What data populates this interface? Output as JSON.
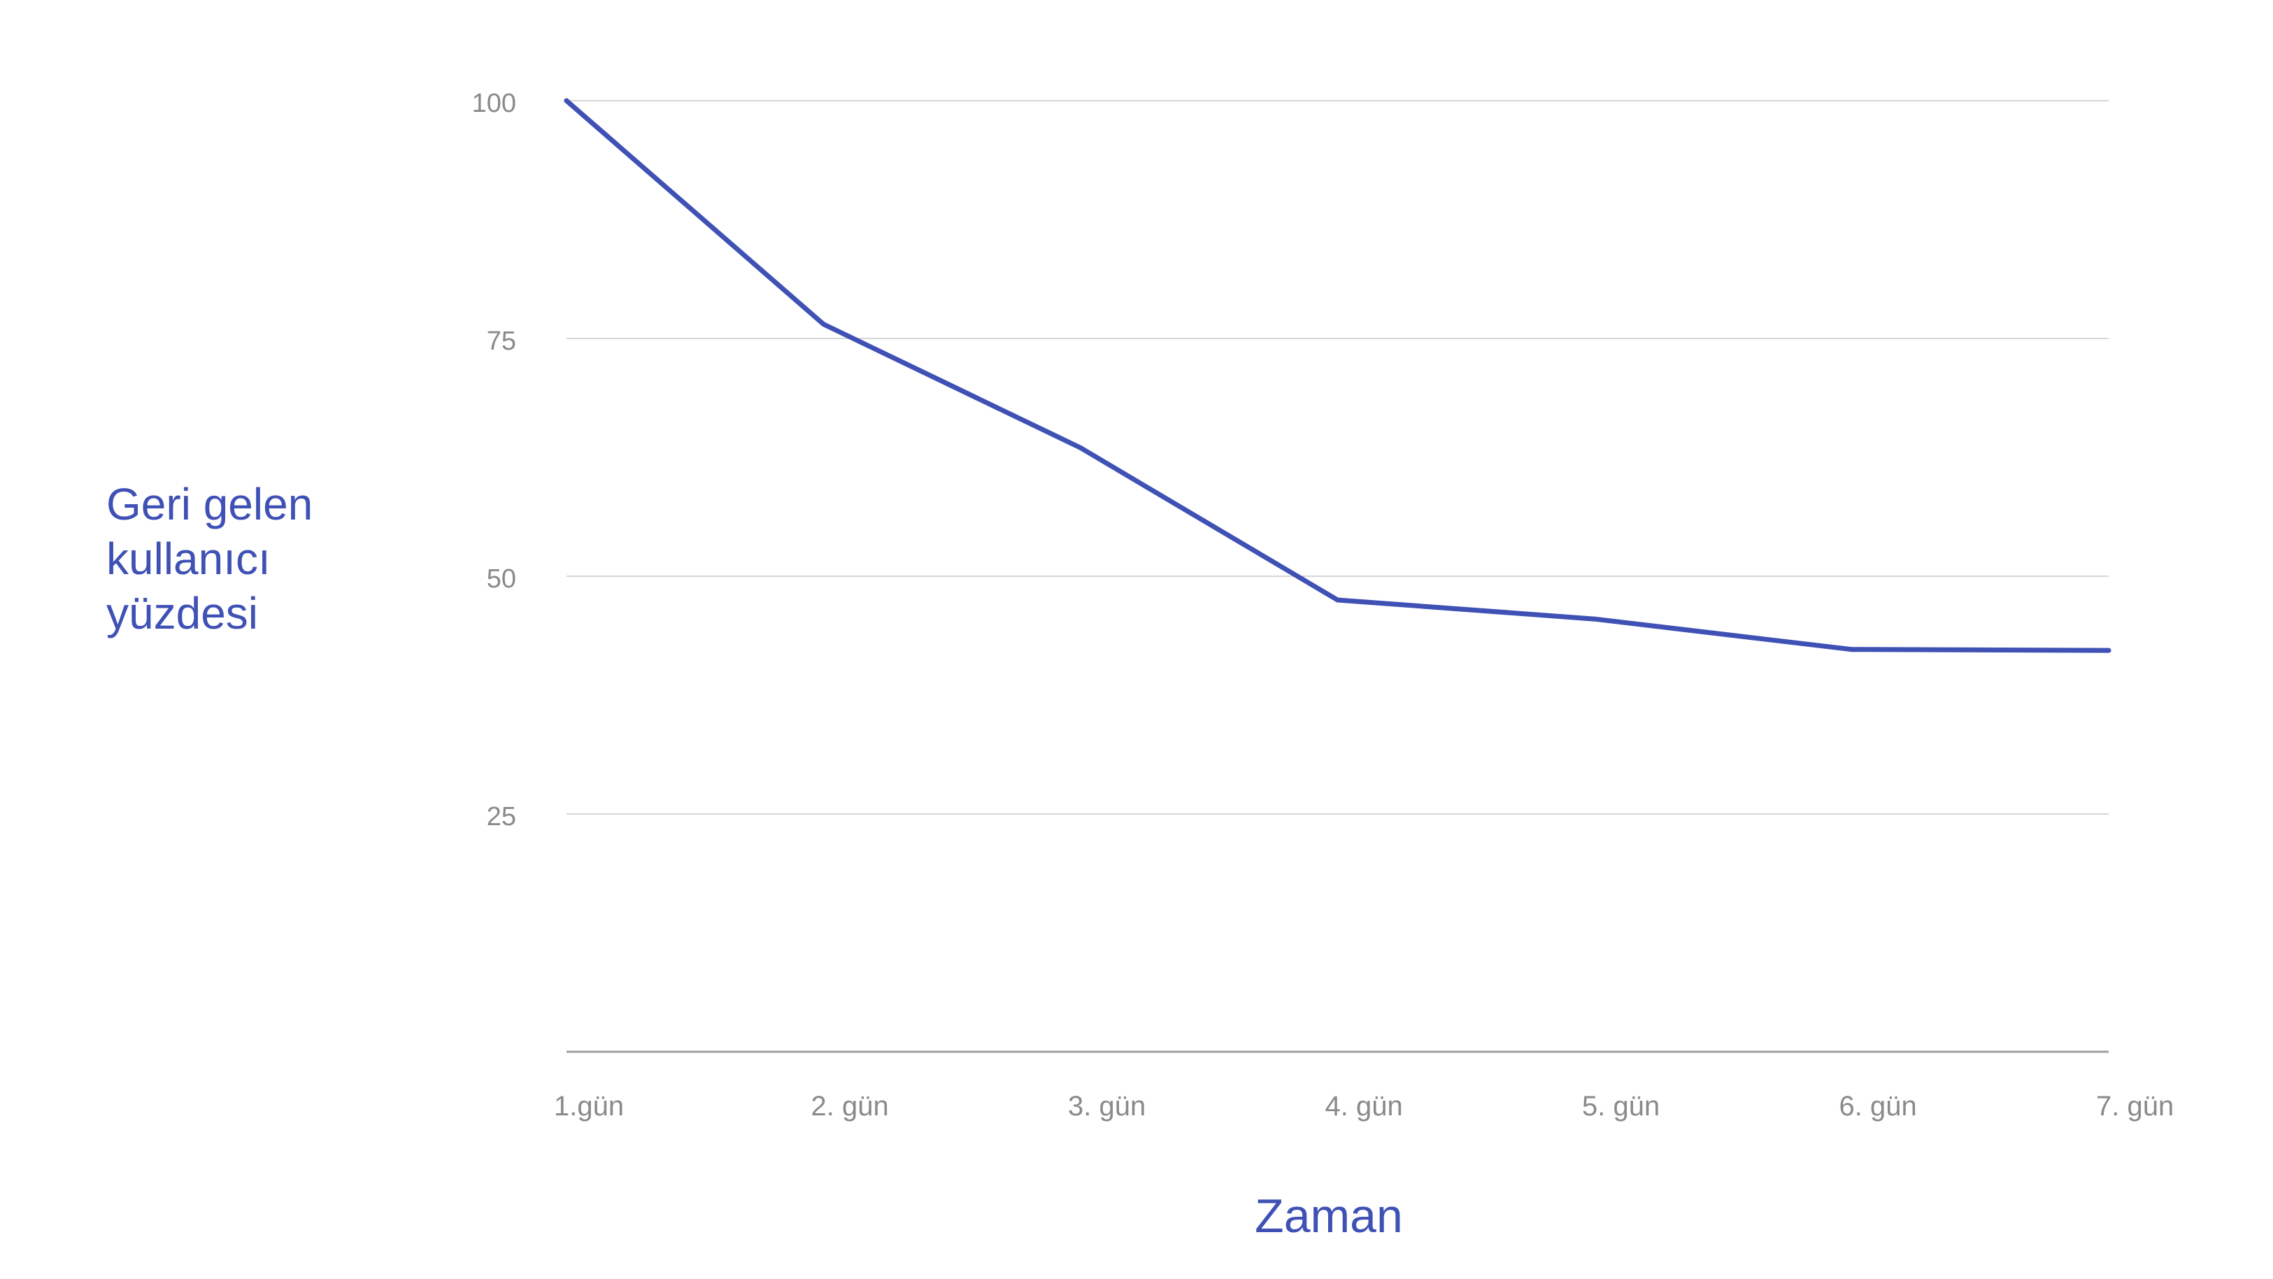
{
  "chart_data": {
    "type": "line",
    "title": "",
    "xlabel": "Zaman",
    "ylabel_lines": [
      "Geri gelen",
      "kullanıcı",
      "yüzdesi"
    ],
    "categories": [
      "1.gün",
      "2. gün",
      "3. gün",
      "4. gün",
      "5. gün",
      "6. gün",
      "7. gün"
    ],
    "series": [
      {
        "values": [
          100,
          76.5,
          63.5,
          47.5,
          45.5,
          42.3,
          42.2
        ]
      }
    ],
    "ylim": [
      0,
      100
    ],
    "yticks": [
      25,
      50,
      75,
      100
    ],
    "ytick_labels": [
      "25",
      "50",
      "75",
      "100"
    ],
    "grid": true,
    "legend": "none",
    "colors": {
      "line": "#3F51B5",
      "label": "#3F51B5",
      "tick_text": "#8a8a8a",
      "grid": "#d6d6d6",
      "axis": "#9e9e9e"
    }
  }
}
